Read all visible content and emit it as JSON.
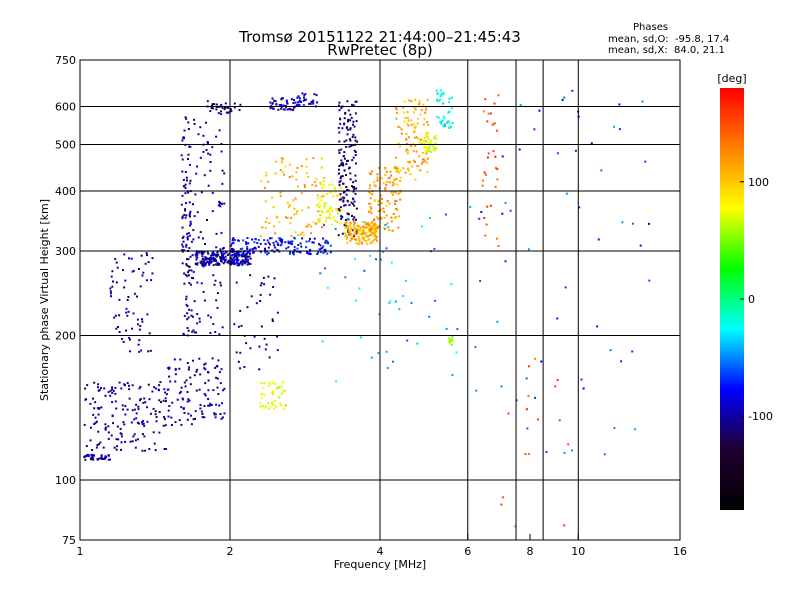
{
  "header": {
    "title": "Tromsø 20151122 21:44:00–21:45:43",
    "subtitle": "RwPretec (8p)",
    "stats_heading": "Phases",
    "stats_o": "mean, sd,O:  -95.8, 17.4",
    "stats_x": "mean, sd,X:  84.0, 21.1"
  },
  "colorbar": {
    "label": "[deg]",
    "ticks": [
      "100",
      "0",
      "-100"
    ],
    "tick_values": [
      100,
      0,
      -100
    ],
    "range": [
      -180,
      180
    ],
    "colors": [
      "#ff0000",
      "#ff8000",
      "#ffff00",
      "#00ff00",
      "#00ffff",
      "#0000ff",
      "#200030",
      "#000000"
    ]
  },
  "chart_data": {
    "type": "scatter",
    "xlabel": "Frequency [MHz]",
    "ylabel": "Stationary phase Virtual Height [km]",
    "x_scale": "log",
    "y_scale": "log",
    "xlim": [
      1,
      16
    ],
    "ylim": [
      75,
      750
    ],
    "x_ticks": [
      1,
      2,
      4,
      6,
      8,
      10,
      16
    ],
    "x_tick_labels": [
      "1",
      "2",
      "4",
      "6",
      "8",
      "10",
      "16"
    ],
    "x_grid": [
      2,
      4,
      6,
      7.5,
      8.5,
      10
    ],
    "y_ticks": [
      75,
      100,
      200,
      300,
      400,
      500,
      600,
      750
    ],
    "y_tick_labels": [
      "75",
      "100",
      "200",
      "300",
      "400",
      "500",
      "600",
      "750"
    ],
    "grid": true,
    "clusters": [
      {
        "f": [
          1.02,
          1.15
        ],
        "h": [
          110,
          113
        ],
        "n": 40,
        "phase": -100
      },
      {
        "f": [
          1.02,
          1.5
        ],
        "h": [
          115,
          160
        ],
        "n": 160,
        "phase": -105
      },
      {
        "f": [
          1.15,
          1.4
        ],
        "h": [
          180,
          300
        ],
        "n": 70,
        "phase": -100
      },
      {
        "f": [
          1.5,
          1.95
        ],
        "h": [
          130,
          180
        ],
        "n": 110,
        "phase": -100
      },
      {
        "f": [
          1.6,
          1.7
        ],
        "h": [
          200,
          580
        ],
        "n": 120,
        "phase": -105
      },
      {
        "f": [
          1.7,
          1.95
        ],
        "h": [
          200,
          620
        ],
        "n": 80,
        "phase": -100
      },
      {
        "f": [
          1.7,
          2.2
        ],
        "h": [
          280,
          300
        ],
        "n": 220,
        "phase": -100
      },
      {
        "f": [
          1.8,
          2.1
        ],
        "h": [
          580,
          610
        ],
        "n": 30,
        "phase": -110
      },
      {
        "f": [
          2.4,
          2.7
        ],
        "h": [
          590,
          625
        ],
        "n": 40,
        "phase": -100
      },
      {
        "f": [
          2.7,
          3.0
        ],
        "h": [
          600,
          640
        ],
        "n": 30,
        "phase": -90
      },
      {
        "f": [
          2.0,
          3.2
        ],
        "h": [
          295,
          320
        ],
        "n": 150,
        "phase": -80
      },
      {
        "f": [
          2.3,
          2.6
        ],
        "h": [
          140,
          160
        ],
        "n": 45,
        "phase": 70
      },
      {
        "f": [
          2.3,
          3.1
        ],
        "h": [
          320,
          470
        ],
        "n": 90,
        "phase": 110
      },
      {
        "f": [
          3.0,
          3.4
        ],
        "h": [
          340,
          420
        ],
        "n": 60,
        "phase": 80
      },
      {
        "f": [
          3.3,
          3.6
        ],
        "h": [
          320,
          620
        ],
        "n": 160,
        "phase": -110
      },
      {
        "f": [
          3.4,
          3.95
        ],
        "h": [
          310,
          345
        ],
        "n": 150,
        "phase": 110
      },
      {
        "f": [
          3.8,
          4.4
        ],
        "h": [
          330,
          450
        ],
        "n": 120,
        "phase": 115
      },
      {
        "f": [
          4.3,
          5.0
        ],
        "h": [
          420,
          620
        ],
        "n": 110,
        "phase": 110
      },
      {
        "f": [
          4.9,
          5.2
        ],
        "h": [
          480,
          530
        ],
        "n": 40,
        "phase": 70
      },
      {
        "f": [
          5.2,
          5.6
        ],
        "h": [
          540,
          650
        ],
        "n": 40,
        "phase": -20
      },
      {
        "f": [
          5.5,
          5.6
        ],
        "h": [
          190,
          200
        ],
        "n": 10,
        "phase": 60
      },
      {
        "f": [
          2.0,
          2.5
        ],
        "h": [
          170,
          270
        ],
        "n": 40,
        "phase": -100
      },
      {
        "f": [
          3.0,
          6.0
        ],
        "h": [
          160,
          360
        ],
        "n": 50,
        "phase": -40
      },
      {
        "f": [
          6.0,
          14.0
        ],
        "h": [
          110,
          650
        ],
        "n": 60,
        "phase": -60
      },
      {
        "f": [
          6.4,
          7.0
        ],
        "h": [
          300,
          650
        ],
        "n": 30,
        "phase": 150
      },
      {
        "f": [
          7.0,
          10.0
        ],
        "h": [
          80,
          200
        ],
        "n": 15,
        "phase": 150
      }
    ]
  }
}
